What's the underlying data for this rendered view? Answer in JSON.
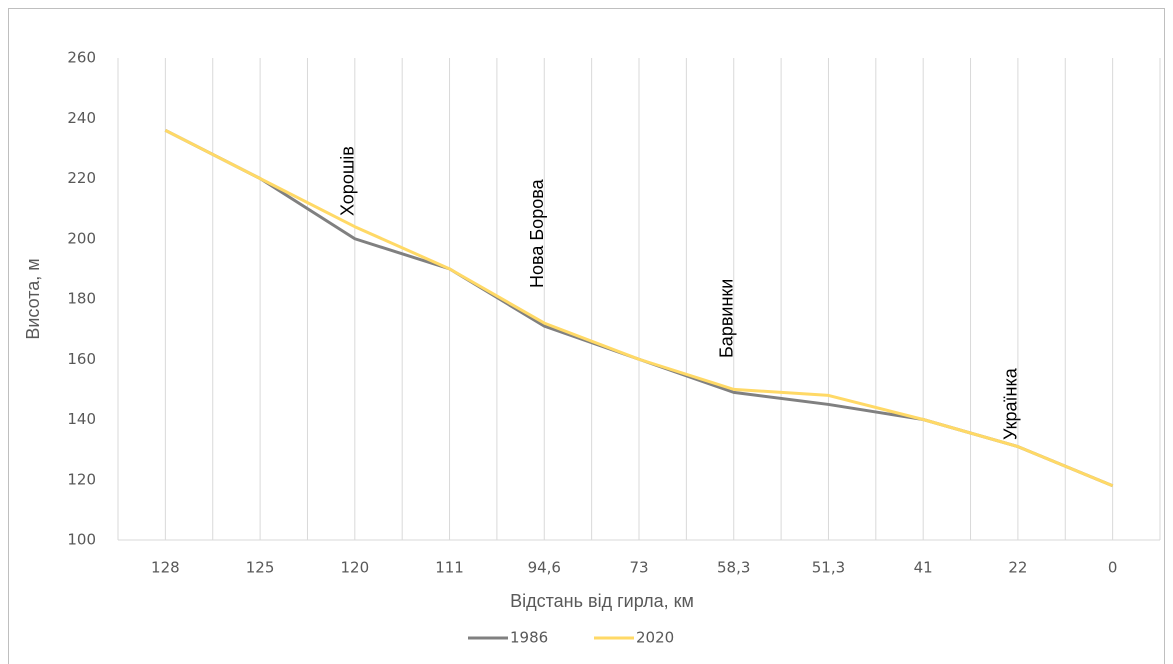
{
  "chart_data": {
    "type": "line",
    "categories": [
      "128",
      "125",
      "120",
      "111",
      "94,6",
      "73",
      "58,3",
      "51,3",
      "41",
      "22",
      "0"
    ],
    "series": [
      {
        "name": "1986",
        "color": "#808080",
        "values": [
          236,
          220,
          200,
          190,
          171,
          160,
          149,
          145,
          140,
          131,
          118
        ]
      },
      {
        "name": "2020",
        "color": "#ffd966",
        "values": [
          236,
          220,
          204,
          190,
          172,
          160,
          150,
          148,
          140,
          131,
          118
        ]
      }
    ],
    "ylim": [
      100,
      260
    ],
    "yticks": [
      100,
      120,
      140,
      160,
      180,
      200,
      220,
      240,
      260
    ],
    "grid": true,
    "x_label": "Відстань від гирла, км",
    "y_label": "Висота, м",
    "annotations": [
      "Хорошів",
      "Нова Борова",
      "Барвинки",
      "Українка"
    ],
    "legend": "bottom"
  }
}
